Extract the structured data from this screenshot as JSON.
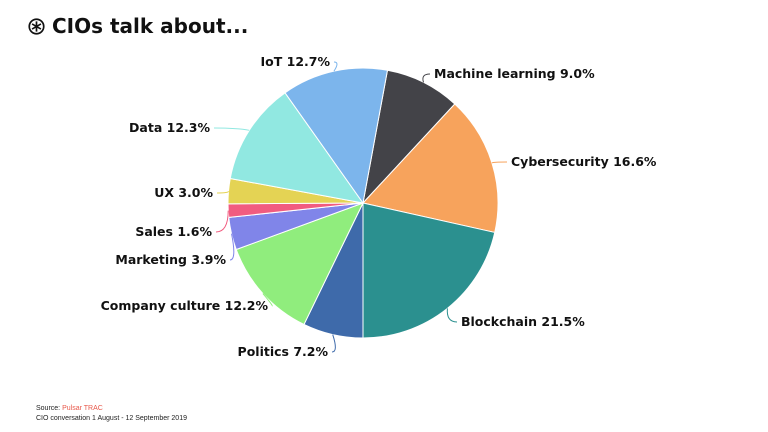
{
  "title": "CIOs talk about...",
  "source": {
    "prefix": "Source: ",
    "name": "Pulsar TRAC",
    "note": "CIO conversation 1 August - 12 September 2019"
  },
  "chart_data": {
    "type": "pie",
    "title": "CIOs talk about...",
    "series": [
      {
        "name": "Machine learning",
        "value": 9.0,
        "label": "Machine learning 9.0%",
        "color": "#434348"
      },
      {
        "name": "Cybersecurity",
        "value": 16.6,
        "label": "Cybersecurity 16.6%",
        "color": "#f7a35c"
      },
      {
        "name": "Blockchain",
        "value": 21.5,
        "label": "Blockchain 21.5%",
        "color": "#2b908f"
      },
      {
        "name": "Politics",
        "value": 7.2,
        "label": "Politics 7.2%",
        "color": "#3e6aaa"
      },
      {
        "name": "Company culture",
        "value": 12.2,
        "label": "Company culture 12.2%",
        "color": "#90ed7d"
      },
      {
        "name": "Marketing",
        "value": 3.9,
        "label": "Marketing 3.9%",
        "color": "#8085e9"
      },
      {
        "name": "Sales",
        "value": 1.6,
        "label": "Sales 1.6%",
        "color": "#f15c80"
      },
      {
        "name": "UX",
        "value": 3.0,
        "label": "UX 3.0%",
        "color": "#e4d354"
      },
      {
        "name": "Data",
        "value": 12.3,
        "label": "Data 12.3%",
        "color": "#91e8e1"
      },
      {
        "name": "IoT",
        "value": 12.7,
        "label": "IoT 12.7%",
        "color": "#7cb5ec"
      }
    ]
  }
}
